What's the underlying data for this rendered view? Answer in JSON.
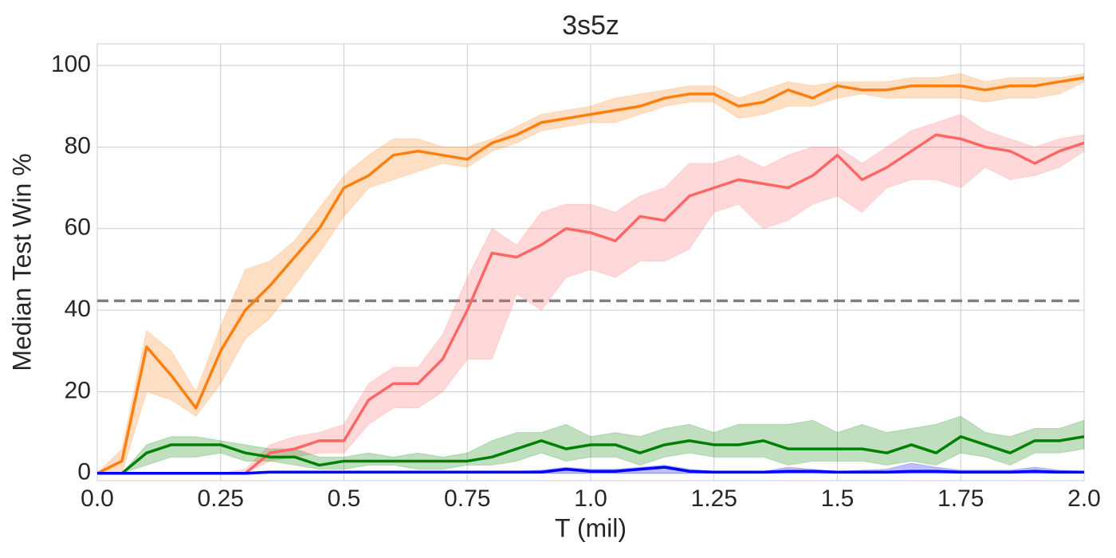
{
  "chart_data": {
    "type": "line",
    "title": "3s5z",
    "xlabel": "T (mil)",
    "ylabel": "Median Test Win %",
    "xlim": [
      0,
      2
    ],
    "ylim": [
      -1.8,
      105.3
    ],
    "grid": true,
    "xticks": [
      {
        "value": 0,
        "label": "0.0"
      },
      0.25,
      0.5,
      0.75,
      {
        "value": 1,
        "label": "1.0"
      },
      1.25,
      1.5,
      1.75,
      {
        "value": 2,
        "label": "2.0"
      }
    ],
    "yticks": [
      0,
      20,
      40,
      60,
      80,
      100
    ],
    "hline": 42.3,
    "hline_color": "#808080",
    "x": [
      0,
      0.05,
      0.1,
      0.15,
      0.2,
      0.25,
      0.3,
      0.35,
      0.4,
      0.45,
      0.5,
      0.55,
      0.6,
      0.65,
      0.7,
      0.75,
      0.8,
      0.85,
      0.9,
      0.95,
      1,
      1.05,
      1.1,
      1.15,
      1.2,
      1.25,
      1.3,
      1.35,
      1.4,
      1.45,
      1.5,
      1.55,
      1.6,
      1.65,
      1.7,
      1.75,
      1.8,
      1.85,
      1.9,
      1.95,
      2
    ],
    "series": [
      {
        "color": "#ff7f0e",
        "values": [
          0,
          3,
          31,
          24,
          16,
          30,
          40,
          46,
          53,
          60,
          70,
          73,
          78,
          79,
          78,
          77,
          81,
          83,
          86,
          87,
          88,
          89,
          90,
          92,
          93,
          93,
          90,
          91,
          94,
          92,
          95,
          94,
          94,
          95,
          95,
          95,
          94,
          95,
          95,
          96,
          97
        ],
        "lower": [
          0,
          0,
          20,
          18,
          14,
          22,
          33,
          38,
          46,
          54,
          63,
          70,
          72,
          74,
          76,
          75,
          79,
          81,
          84,
          85,
          86,
          86,
          88,
          90,
          91,
          91,
          87,
          88,
          90,
          90,
          92,
          93,
          92,
          92,
          92,
          92,
          91,
          92,
          92,
          93,
          96
        ],
        "upper": [
          0,
          6,
          35,
          30,
          20,
          36,
          50,
          52,
          57,
          65,
          73,
          78,
          82,
          82,
          80,
          80,
          82,
          85,
          88,
          89,
          90,
          92,
          93,
          94,
          95,
          95,
          92,
          94,
          96,
          95,
          96,
          96,
          96,
          97,
          97,
          98,
          96,
          97,
          97,
          97,
          98
        ]
      },
      {
        "color": "#ff6666",
        "values": [
          0,
          0,
          0,
          0,
          0,
          0,
          0,
          5,
          6,
          8,
          8,
          18,
          22,
          22,
          28,
          40,
          54,
          53,
          56,
          60,
          59,
          57,
          63,
          62,
          68,
          70,
          72,
          71,
          70,
          73,
          78,
          72,
          75,
          79,
          83,
          82,
          80,
          79,
          76,
          79,
          81
        ],
        "lower": [
          0,
          0,
          0,
          0,
          0,
          0,
          0,
          3,
          4,
          5,
          5,
          12,
          16,
          16,
          20,
          28,
          28,
          44,
          40,
          48,
          50,
          48,
          52,
          52,
          55,
          64,
          66,
          60,
          62,
          66,
          68,
          64,
          70,
          72,
          72,
          70,
          75,
          72,
          73,
          75,
          79
        ],
        "upper": [
          0,
          0,
          0,
          0,
          0,
          0,
          1,
          7,
          9,
          10,
          12,
          22,
          26,
          26,
          34,
          48,
          60,
          56,
          64,
          66,
          66,
          64,
          68,
          70,
          76,
          76,
          78,
          75,
          78,
          80,
          80,
          76,
          80,
          84,
          86,
          88,
          84,
          82,
          80,
          82,
          83
        ]
      },
      {
        "color": "#008000",
        "values": [
          0,
          0,
          5,
          7,
          7,
          7,
          5,
          4,
          4,
          2,
          3,
          3,
          3,
          3,
          3,
          3,
          4,
          6,
          8,
          6,
          7,
          7,
          5,
          7,
          8,
          7,
          7,
          8,
          6,
          6,
          6,
          6,
          5,
          7,
          5,
          9,
          7,
          5,
          8,
          8,
          9
        ],
        "lower": [
          0,
          0,
          2,
          4,
          4,
          5,
          3,
          3,
          2,
          1,
          1,
          2,
          2,
          1,
          1,
          2,
          2,
          3,
          5,
          3,
          4,
          4,
          2,
          4,
          5,
          4,
          4,
          4,
          2,
          3,
          3,
          3,
          2,
          3,
          2,
          5,
          4,
          2,
          5,
          5,
          6
        ],
        "upper": [
          0,
          0,
          7,
          9,
          9,
          8,
          7,
          6,
          6,
          4,
          4,
          5,
          4,
          5,
          4,
          5,
          8,
          10,
          10,
          12,
          9,
          10,
          9,
          11,
          12,
          10,
          12,
          12,
          12,
          13,
          10,
          12,
          10,
          11,
          12,
          14,
          10,
          9,
          11,
          11,
          13
        ]
      },
      {
        "color": "#0000ff",
        "values": [
          0,
          0,
          0,
          0,
          0,
          0,
          0,
          0.3,
          0.3,
          0.3,
          0.3,
          0.3,
          0.3,
          0.3,
          0.3,
          0.3,
          0.3,
          0.3,
          0.3,
          1,
          0.5,
          0.5,
          1,
          1.5,
          0.5,
          0.3,
          0.3,
          0.3,
          0.5,
          0.5,
          0.3,
          0.3,
          0.3,
          0.5,
          0.5,
          0.3,
          0.3,
          0.3,
          0.5,
          0.3,
          0.3
        ],
        "lower": [
          0,
          0,
          0,
          0,
          0,
          0,
          0,
          0,
          0,
          0,
          0,
          0,
          0,
          0,
          0,
          0,
          0,
          0,
          0,
          0,
          0,
          0,
          0,
          0,
          0,
          0,
          0,
          0,
          0,
          0,
          0,
          0,
          0,
          0,
          0,
          0,
          0,
          0,
          0,
          0,
          0
        ],
        "upper": [
          0,
          0,
          0,
          0,
          0,
          0,
          0,
          0.5,
          0.5,
          0.5,
          0.5,
          0.5,
          0.5,
          0.5,
          0.5,
          0.5,
          0.5,
          0.5,
          0.8,
          1.5,
          1,
          1,
          1.5,
          2,
          1,
          0.5,
          0.5,
          0.5,
          1.5,
          1,
          0.5,
          0.8,
          1,
          2.5,
          1.5,
          0.8,
          0.8,
          0.8,
          1.5,
          0.8,
          0.5
        ]
      }
    ]
  }
}
